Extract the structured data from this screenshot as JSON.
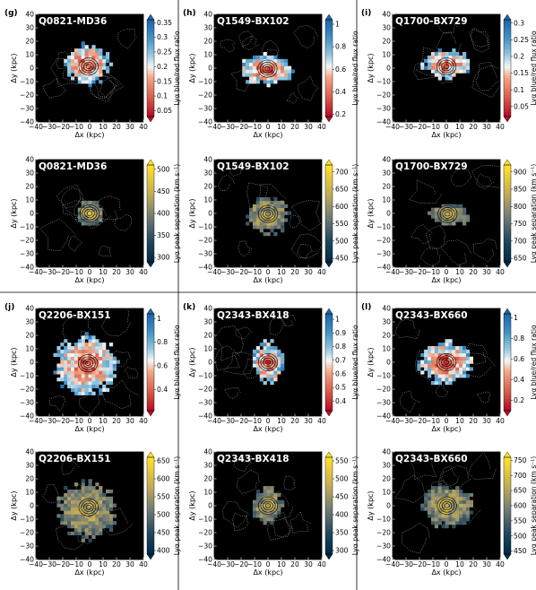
{
  "chart_data": [
    {
      "panel": "(g)",
      "title": "Q0821-MD36",
      "type": "heatmap",
      "metric": "ratio",
      "cmap": "coolwarm_r",
      "xlabel": "Δx (kpc)",
      "ylabel": "Δy (kpc)",
      "xlim": [
        -40,
        40
      ],
      "ylim": [
        -40,
        40
      ],
      "xticks": [
        -40,
        -30,
        -20,
        -10,
        0,
        10,
        20,
        30,
        40
      ],
      "yticks": [
        -40,
        -30,
        -20,
        -10,
        0,
        10,
        20,
        30,
        40
      ],
      "colorbar": {
        "label": "Lyα blue/red flux ratio",
        "ticks": [
          0.05,
          0.1,
          0.15,
          0.2,
          0.25,
          0.3,
          0.35
        ],
        "range": [
          0.03,
          0.36
        ]
      },
      "blob": {
        "cx": -2,
        "cy": 3,
        "rx": 16,
        "ry": 14
      }
    },
    {
      "panel": "(h)",
      "title": "Q1549-BX102",
      "type": "heatmap",
      "metric": "ratio",
      "cmap": "coolwarm_r",
      "xlabel": "Δx (kpc)",
      "ylabel": "Δy (kpc)",
      "xlim": [
        -40,
        40
      ],
      "ylim": [
        -40,
        40
      ],
      "xticks": [
        -40,
        -30,
        -20,
        -10,
        0,
        10,
        20,
        30,
        40
      ],
      "yticks": [
        -40,
        -30,
        -20,
        -10,
        0,
        10,
        20,
        30,
        40
      ],
      "colorbar": {
        "label": "Lyα blue/red flux ratio",
        "ticks": [
          0.2,
          0.4,
          0.6,
          0.8,
          1.0
        ],
        "range": [
          0.18,
          1.04
        ]
      },
      "blob": {
        "cx": -1,
        "cy": -1,
        "rx": 19,
        "ry": 11
      }
    },
    {
      "panel": "(i)",
      "title": "Q1700-BX729",
      "type": "heatmap",
      "metric": "ratio",
      "cmap": "coolwarm_r",
      "xlabel": "Δx (kpc)",
      "ylabel": "Δy (kpc)",
      "xlim": [
        -40,
        40
      ],
      "ylim": [
        -40,
        40
      ],
      "xticks": [
        -40,
        -30,
        -20,
        -10,
        0,
        10,
        20,
        30,
        40
      ],
      "yticks": [
        -40,
        -30,
        -20,
        -10,
        0,
        10,
        20,
        30,
        40
      ],
      "colorbar": {
        "label": "Lyα blue/red flux ratio",
        "ticks": [
          0.05,
          0.1,
          0.15,
          0.2,
          0.25,
          0.3
        ],
        "range": [
          0.02,
          0.31
        ]
      },
      "blob": {
        "cx": 0,
        "cy": 3,
        "rx": 17,
        "ry": 10
      }
    },
    {
      "panel": "",
      "title": "Q0821-MD36",
      "type": "heatmap",
      "metric": "sep",
      "cmap": "cividis",
      "xlabel": "Δx (kpc)",
      "ylabel": "Δy (kpc)",
      "xlim": [
        -40,
        40
      ],
      "ylim": [
        -40,
        40
      ],
      "xticks": [
        -40,
        -30,
        -20,
        -10,
        0,
        10,
        20,
        30,
        40
      ],
      "yticks": [
        -40,
        -30,
        -20,
        -10,
        0,
        10,
        20,
        30,
        40
      ],
      "colorbar": {
        "label": "Lyα peak separation (km s⁻¹)",
        "ticks": [
          300,
          350,
          400,
          450,
          500
        ],
        "range": [
          290,
          510
        ]
      },
      "blob": {
        "cx": 0,
        "cy": 0,
        "rx": 9,
        "ry": 10
      }
    },
    {
      "panel": "",
      "title": "Q1549-BX102",
      "type": "heatmap",
      "metric": "sep",
      "cmap": "cividis",
      "xlabel": "Δx (kpc)",
      "ylabel": "Δy (kpc)",
      "xlim": [
        -40,
        40
      ],
      "ylim": [
        -40,
        40
      ],
      "xticks": [
        -40,
        -30,
        -20,
        -10,
        0,
        10,
        20,
        30,
        40
      ],
      "yticks": [
        -40,
        -30,
        -20,
        -10,
        0,
        10,
        20,
        30,
        40
      ],
      "colorbar": {
        "label": "Lyα peak separation (km s⁻¹)",
        "ticks": [
          450,
          500,
          550,
          600,
          650,
          700
        ],
        "range": [
          440,
          720
        ]
      },
      "blob": {
        "cx": 0,
        "cy": -1,
        "rx": 16,
        "ry": 13
      }
    },
    {
      "panel": "",
      "title": "Q1700-BX729",
      "type": "heatmap",
      "metric": "sep",
      "cmap": "cividis",
      "xlabel": "Δx (kpc)",
      "ylabel": "Δy (kpc)",
      "xlim": [
        -40,
        40
      ],
      "ylim": [
        -40,
        40
      ],
      "xticks": [
        -40,
        -30,
        -20,
        -10,
        0,
        10,
        20,
        30,
        40
      ],
      "yticks": [
        -40,
        -30,
        -20,
        -10,
        0,
        10,
        20,
        30,
        40
      ],
      "colorbar": {
        "label": "Lyα peak separation (km s⁻¹)",
        "ticks": [
          650,
          700,
          750,
          800,
          850,
          900
        ],
        "range": [
          640,
          920
        ]
      },
      "blob": {
        "cx": 2,
        "cy": -1,
        "rx": 15,
        "ry": 8
      }
    },
    {
      "panel": "(j)",
      "title": "Q2206-BX151",
      "type": "heatmap",
      "metric": "ratio",
      "cmap": "coolwarm_r",
      "xlabel": "Δx (kpc)",
      "ylabel": "Δy (kpc)",
      "xlim": [
        -40,
        40
      ],
      "ylim": [
        -40,
        40
      ],
      "xticks": [
        -40,
        -30,
        -20,
        -10,
        0,
        10,
        20,
        30,
        40
      ],
      "yticks": [
        -40,
        -30,
        -20,
        -10,
        0,
        10,
        20,
        30,
        40
      ],
      "colorbar": {
        "label": "Lyα blue/red flux ratio",
        "ticks": [
          0.4,
          0.6,
          0.8,
          1.0
        ],
        "range": [
          0.22,
          1.04
        ]
      },
      "blob": {
        "cx": -3,
        "cy": -2,
        "rx": 22,
        "ry": 21
      }
    },
    {
      "panel": "(k)",
      "title": "Q2343-BX418",
      "type": "heatmap",
      "metric": "ratio",
      "cmap": "coolwarm_r",
      "xlabel": "Δx (kpc)",
      "ylabel": "Δy (kpc)",
      "xlim": [
        -40,
        40
      ],
      "ylim": [
        -40,
        40
      ],
      "xticks": [
        -40,
        -30,
        -20,
        -10,
        0,
        10,
        20,
        30,
        40
      ],
      "yticks": [
        -40,
        -30,
        -20,
        -10,
        0,
        10,
        20,
        30,
        40
      ],
      "colorbar": {
        "label": "Lyα blue/red flux ratio",
        "ticks": [
          0.4,
          0.5,
          0.6,
          0.7,
          0.8,
          0.9,
          1.0
        ],
        "range": [
          0.33,
          1.04
        ]
      },
      "blob": {
        "cx": 0,
        "cy": 0,
        "rx": 11,
        "ry": 15
      }
    },
    {
      "panel": "(l)",
      "title": "Q2343-BX660",
      "type": "heatmap",
      "metric": "ratio",
      "cmap": "coolwarm_r",
      "xlabel": "Δx (kpc)",
      "ylabel": "Δy (kpc)",
      "xlim": [
        -40,
        40
      ],
      "ylim": [
        -40,
        40
      ],
      "xticks": [
        -40,
        -30,
        -20,
        -10,
        0,
        10,
        20,
        30,
        40
      ],
      "yticks": [
        -40,
        -30,
        -20,
        -10,
        0,
        10,
        20,
        30,
        40
      ],
      "colorbar": {
        "label": "Lyα blue/red flux ratio",
        "ticks": [
          0.2,
          0.4,
          0.6,
          0.8,
          1.0
        ],
        "range": [
          0.1,
          1.04
        ]
      },
      "blob": {
        "cx": 0,
        "cy": 0,
        "rx": 19,
        "ry": 15
      }
    },
    {
      "panel": "",
      "title": "Q2206-BX151",
      "type": "heatmap",
      "metric": "sep",
      "cmap": "cividis",
      "xlabel": "Δx (kpc)",
      "ylabel": "Δy (kpc)",
      "xlim": [
        -40,
        40
      ],
      "ylim": [
        -40,
        40
      ],
      "xticks": [
        -40,
        -30,
        -20,
        -10,
        0,
        10,
        20,
        30,
        40
      ],
      "yticks": [
        -40,
        -30,
        -20,
        -10,
        0,
        10,
        20,
        30,
        40
      ],
      "colorbar": {
        "label": "Lyα peak separation (km s⁻¹)",
        "ticks": [
          400,
          450,
          500,
          550,
          600,
          650
        ],
        "range": [
          390,
          660
        ]
      },
      "blob": {
        "cx": -2,
        "cy": -3,
        "rx": 21,
        "ry": 20
      }
    },
    {
      "panel": "",
      "title": "Q2343-BX418",
      "type": "heatmap",
      "metric": "sep",
      "cmap": "cividis",
      "xlabel": "Δx (kpc)",
      "ylabel": "Δy (kpc)",
      "xlim": [
        -40,
        40
      ],
      "ylim": [
        -40,
        40
      ],
      "xticks": [
        -40,
        -30,
        -20,
        -10,
        0,
        10,
        20,
        30,
        40
      ],
      "yticks": [
        -40,
        -30,
        -20,
        -10,
        0,
        10,
        20,
        30,
        40
      ],
      "colorbar": {
        "label": "Lyα peak separation (km s⁻¹)",
        "ticks": [
          300,
          350,
          400,
          450,
          500,
          550
        ],
        "range": [
          290,
          560
        ]
      },
      "blob": {
        "cx": 0,
        "cy": 0,
        "rx": 11,
        "ry": 13
      }
    },
    {
      "panel": "",
      "title": "Q2343-BX660",
      "type": "heatmap",
      "metric": "sep",
      "cmap": "cividis",
      "xlabel": "Δx (kpc)",
      "ylabel": "Δy (kpc)",
      "xlim": [
        -40,
        40
      ],
      "ylim": [
        -40,
        40
      ],
      "xticks": [
        -40,
        -30,
        -20,
        -10,
        0,
        10,
        20,
        30,
        40
      ],
      "yticks": [
        -40,
        -30,
        -20,
        -10,
        0,
        10,
        20,
        30,
        40
      ],
      "colorbar": {
        "label": "Lyα peak separation (km s⁻¹)",
        "ticks": [
          450,
          500,
          550,
          600,
          650,
          700,
          750
        ],
        "range": [
          440,
          760
        ]
      },
      "blob": {
        "cx": 1,
        "cy": 0,
        "rx": 18,
        "ry": 15
      }
    }
  ]
}
